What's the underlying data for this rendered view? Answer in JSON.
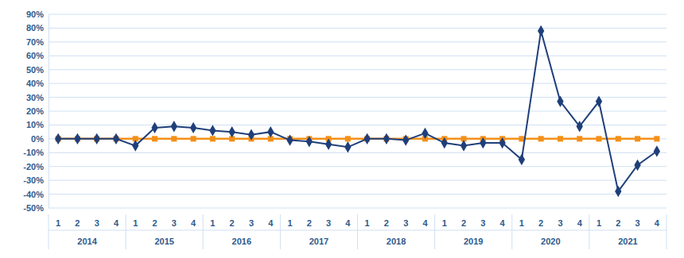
{
  "chart_data": {
    "type": "line",
    "categories": [
      "1",
      "2",
      "3",
      "4",
      "1",
      "2",
      "3",
      "4",
      "1",
      "2",
      "3",
      "4",
      "1",
      "2",
      "3",
      "4",
      "1",
      "2",
      "3",
      "4",
      "1",
      "2",
      "3",
      "4",
      "1",
      "2",
      "3",
      "4",
      "1",
      "2",
      "3",
      "4"
    ],
    "category_groups": [
      "2014",
      "2015",
      "2016",
      "2017",
      "2018",
      "2019",
      "2020",
      "2021"
    ],
    "ylim": [
      -50,
      90
    ],
    "yticks": [
      {
        "value": -50,
        "label": "-50%"
      },
      {
        "value": -40,
        "label": "-40%"
      },
      {
        "value": -30,
        "label": "-30%"
      },
      {
        "value": -20,
        "label": "-20%"
      },
      {
        "value": -10,
        "label": "-10%"
      },
      {
        "value": 0,
        "label": "0%"
      },
      {
        "value": 10,
        "label": "10%"
      },
      {
        "value": 20,
        "label": "20%"
      },
      {
        "value": 30,
        "label": "30%"
      },
      {
        "value": 40,
        "label": "40%"
      },
      {
        "value": 50,
        "label": "50%"
      },
      {
        "value": 60,
        "label": "60%"
      },
      {
        "value": 70,
        "label": "70%"
      },
      {
        "value": 80,
        "label": "80%"
      },
      {
        "value": 90,
        "label": "90%"
      }
    ],
    "grid": true,
    "series": [
      {
        "color": "#1f3f7a",
        "marker": "diamond",
        "line_style": "solid",
        "values": [
          0,
          0,
          0,
          0,
          -5,
          8,
          9,
          8,
          6,
          5,
          3,
          5,
          -1,
          -2,
          -4,
          -6,
          0,
          0,
          -1,
          4,
          -3,
          -5,
          -3,
          -3,
          -15,
          78,
          27,
          9,
          27,
          -38,
          -19,
          -9
        ]
      },
      {
        "color": "#f39019",
        "marker": "square",
        "line_style": "solid",
        "values": [
          0,
          0,
          0,
          0,
          0,
          0,
          0,
          0,
          0,
          0,
          0,
          0,
          0,
          0,
          0,
          0,
          0,
          0,
          0,
          0,
          0,
          0,
          0,
          0,
          0,
          0,
          0,
          0,
          0,
          0,
          0,
          0
        ]
      }
    ]
  }
}
